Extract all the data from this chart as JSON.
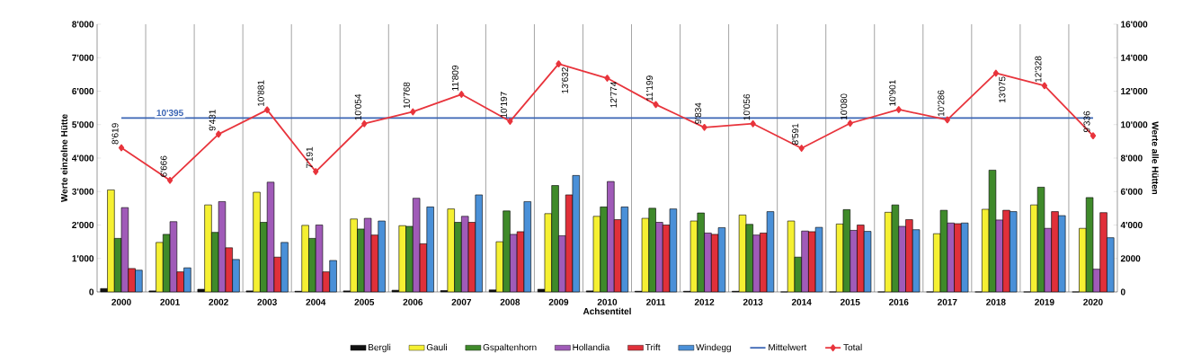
{
  "chart_data": {
    "type": "bar",
    "categories": [
      "2000",
      "2001",
      "2002",
      "2003",
      "2004",
      "2005",
      "2006",
      "2007",
      "2008",
      "2009",
      "2010",
      "2011",
      "2012",
      "2013",
      "2014",
      "2015",
      "2016",
      "2017",
      "2018",
      "2019",
      "2020"
    ],
    "series": [
      {
        "name": "Bergli",
        "color": "#111111",
        "values": [
          100,
          30,
          80,
          30,
          20,
          30,
          50,
          40,
          60,
          80,
          30,
          20,
          20,
          20,
          0,
          0,
          0,
          0,
          0,
          0,
          0
        ]
      },
      {
        "name": "Gauli",
        "color": "#f5f032",
        "values": [
          3050,
          1480,
          2600,
          2980,
          1990,
          2180,
          1980,
          2480,
          1500,
          2340,
          2260,
          2200,
          2120,
          2300,
          2120,
          2030,
          2380,
          1740,
          2470,
          2600,
          1900
        ]
      },
      {
        "name": "Gspaltenhorn",
        "color": "#3f8a2a",
        "values": [
          1600,
          1720,
          1780,
          2080,
          1600,
          1880,
          1960,
          2080,
          2420,
          3180,
          2540,
          2500,
          2360,
          2020,
          1040,
          2460,
          2600,
          2440,
          3640,
          3130,
          2820
        ]
      },
      {
        "name": "Hollandia",
        "color": "#a05bb8",
        "values": [
          2520,
          2100,
          2700,
          3280,
          2000,
          2200,
          2800,
          2260,
          1720,
          1680,
          3300,
          2080,
          1760,
          1700,
          1820,
          1840,
          1960,
          2060,
          2150,
          1900,
          680
        ]
      },
      {
        "name": "Trift",
        "color": "#e0303a",
        "values": [
          700,
          600,
          1320,
          1040,
          600,
          1700,
          1440,
          2080,
          1800,
          2900,
          2160,
          2000,
          1720,
          1760,
          1800,
          2000,
          2160,
          2040,
          2440,
          2400,
          2370
        ]
      },
      {
        "name": "Windegg",
        "color": "#4a90d8",
        "values": [
          650,
          720,
          970,
          1480,
          940,
          2120,
          2540,
          2900,
          2700,
          3480,
          2540,
          2480,
          1920,
          2400,
          1930,
          1810,
          1860,
          2060,
          2400,
          2280,
          1620
        ]
      },
      {
        "name": "Mittelwert",
        "type": "line",
        "axis": "y2",
        "color": "#3a64b4",
        "values": [
          10395,
          10395,
          10395,
          10395,
          10395,
          10395,
          10395,
          10395,
          10395,
          10395,
          10395,
          10395,
          10395,
          10395,
          10395,
          10395,
          10395,
          10395,
          10395,
          10395,
          10395
        ]
      },
      {
        "name": "Total",
        "type": "line",
        "axis": "y2",
        "color": "#e8343c",
        "marker": "diamond",
        "values": [
          8619,
          6666,
          9431,
          10881,
          7191,
          10054,
          10768,
          11809,
          10197,
          13632,
          12774,
          11199,
          9834,
          10056,
          8591,
          10080,
          10901,
          10286,
          13075,
          12328,
          9336
        ],
        "value_labels": [
          "8'619",
          "6'666",
          "9'431",
          "10'881",
          "7'191",
          "10'054",
          "10'768",
          "11'809",
          "10'197",
          "13'632",
          "12'774",
          "11'199",
          "9'834",
          "10'056",
          "8'591",
          "10'080",
          "10'901",
          "10'286",
          "13'075",
          "12'328",
          "9'336"
        ]
      }
    ],
    "annotations": [
      "10'395"
    ],
    "xlabel": "Achsentitel",
    "ylabel": "Werte einzelne Hütte",
    "y2label": "Werte alle Hütten",
    "ylim": [
      0,
      8000
    ],
    "yticks": [
      {
        "value": 0,
        "label": "0"
      },
      {
        "value": 1000,
        "label": "1'000"
      },
      {
        "value": 2000,
        "label": "2'000"
      },
      {
        "value": 3000,
        "label": "3'000"
      },
      {
        "value": 4000,
        "label": "4'000"
      },
      {
        "value": 5000,
        "label": "5'000"
      },
      {
        "value": 6000,
        "label": "6'000"
      },
      {
        "value": 7000,
        "label": "7'000"
      },
      {
        "value": 8000,
        "label": "8'000"
      }
    ],
    "y2lim": [
      0,
      16000
    ],
    "y2ticks": [
      {
        "value": 0,
        "label": "0"
      },
      {
        "value": 2000,
        "label": "2000"
      },
      {
        "value": 4000,
        "label": "4'000"
      },
      {
        "value": 6000,
        "label": "6'000"
      },
      {
        "value": 8000,
        "label": "8'000"
      },
      {
        "value": 10000,
        "label": "10'000"
      },
      {
        "value": 12000,
        "label": "12'000"
      },
      {
        "value": 14000,
        "label": "14'000"
      },
      {
        "value": 16000,
        "label": "16'000"
      }
    ],
    "grid": "x",
    "legend": "bottom"
  }
}
